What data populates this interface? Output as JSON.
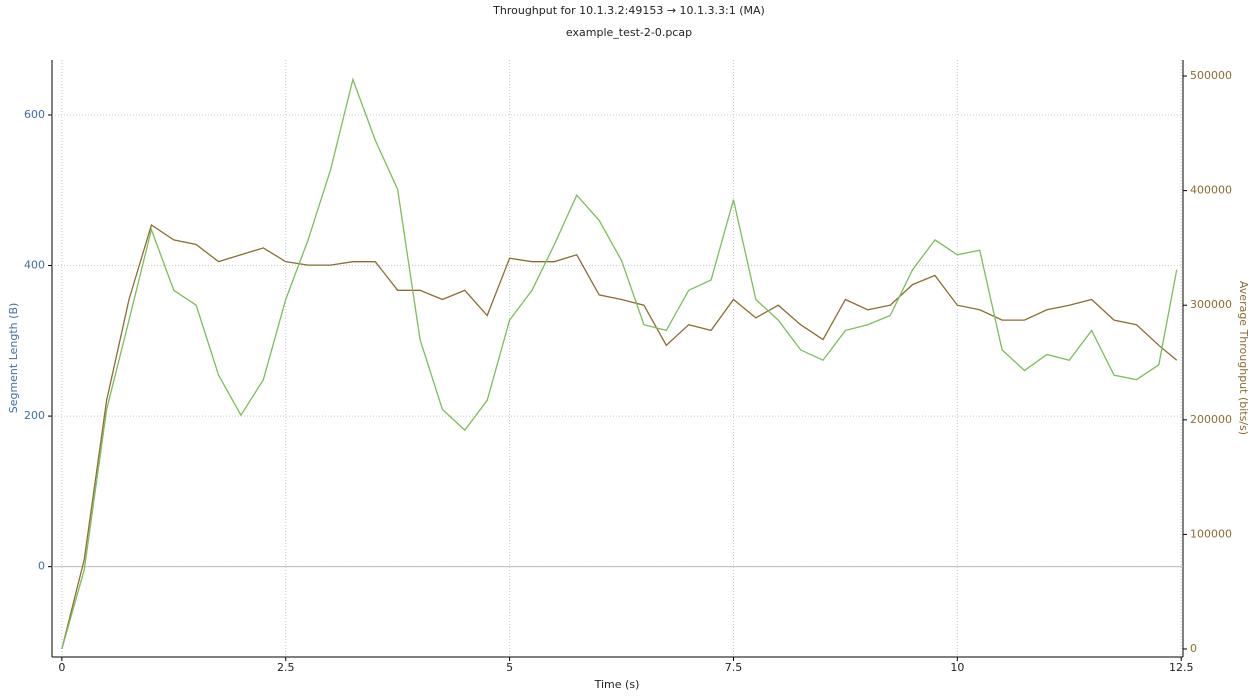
{
  "chart_data": {
    "type": "line",
    "title": "Throughput for 10.1.3.2:49153 → 10.1.3.3:1 (MA)",
    "subtitle": "example_test-2-0.pcap",
    "xlabel": "Time (s)",
    "ylabel": "Segment Length (B)",
    "y2label": "Average Throughput (bits/s)",
    "x": [
      0,
      0.25,
      0.5,
      0.75,
      1,
      1.25,
      1.5,
      1.75,
      2,
      2.25,
      2.5,
      2.75,
      3,
      3.25,
      3.5,
      3.75,
      4,
      4.25,
      4.5,
      4.75,
      5,
      5.25,
      5.5,
      5.75,
      6,
      6.25,
      6.5,
      6.75,
      7,
      7.25,
      7.5,
      7.75,
      8,
      8.25,
      8.5,
      8.75,
      9,
      9.25,
      9.5,
      9.75,
      10,
      10.25,
      10.5,
      10.75,
      11,
      11.25,
      11.5,
      11.75,
      12,
      12.25,
      12.45
    ],
    "series": [
      {
        "color": "#8b6d32",
        "axis": "y2",
        "values": [
          0,
          78000,
          217000,
          305000,
          370000,
          357000,
          353000,
          338000,
          344000,
          350000,
          338000,
          335000,
          335000,
          338000,
          338000,
          313000,
          313000,
          305000,
          313000,
          291000,
          341000,
          338000,
          338000,
          344000,
          309000,
          305000,
          300000,
          265000,
          283000,
          278000,
          305000,
          289000,
          300000,
          283000,
          270000,
          305000,
          296000,
          300000,
          318000,
          326000,
          300000,
          296000,
          287000,
          287000,
          296000,
          300000,
          305000,
          287000,
          283000,
          265000,
          252000
        ]
      },
      {
        "color": "#7dbd5a",
        "axis": "y2",
        "values": [
          0,
          69000,
          209000,
          287000,
          366000,
          313000,
          300000,
          239000,
          204000,
          235000,
          305000,
          357000,
          418000,
          497000,
          444000,
          401000,
          270000,
          209000,
          191000,
          217000,
          287000,
          313000,
          353000,
          396000,
          374000,
          339000,
          283000,
          278000,
          313000,
          322000,
          392000,
          305000,
          287000,
          261000,
          252000,
          278000,
          283000,
          291000,
          331000,
          357000,
          344000,
          348000,
          261000,
          243000,
          257000,
          252000,
          278000,
          239000,
          235000,
          248000,
          331000
        ]
      }
    ],
    "xlim": [
      -0.11,
      12.52
    ],
    "xticks": [
      0,
      2.5,
      5,
      7.5,
      10,
      12.5
    ],
    "ylim": [
      -120,
      673
    ],
    "yticks": [
      0,
      200,
      400,
      600
    ],
    "y2lim": [
      -7000,
      514000
    ],
    "y2ticks": [
      0,
      100000,
      200000,
      300000,
      400000,
      500000
    ],
    "grid": true
  }
}
